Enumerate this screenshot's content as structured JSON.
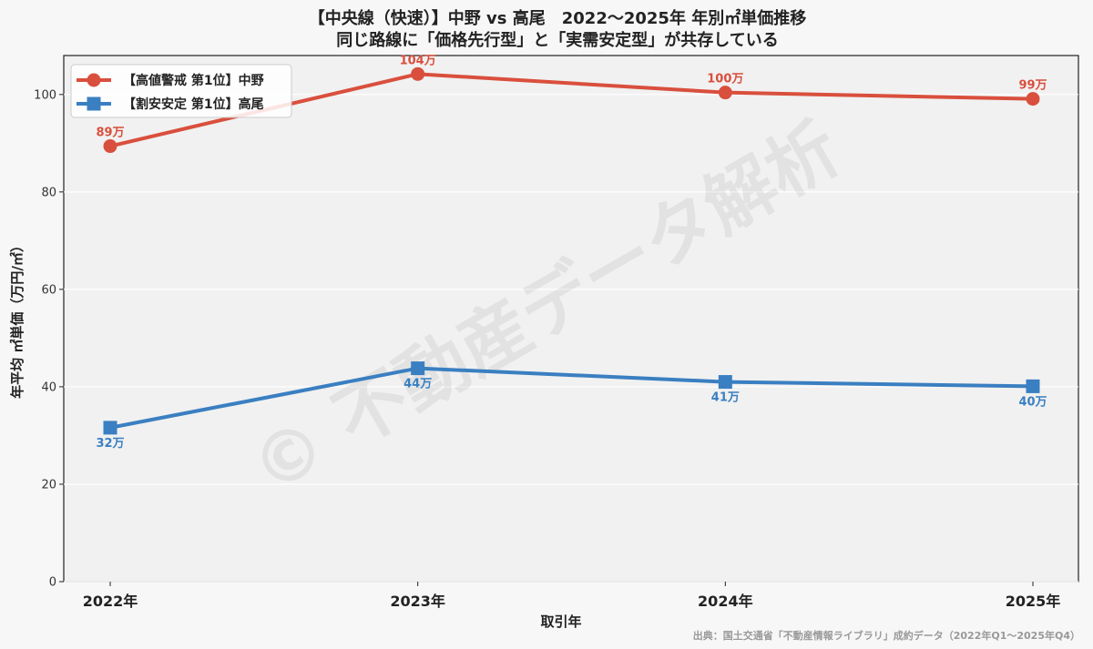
{
  "chart_data": {
    "type": "line",
    "title_line1": "【中央線（快速）】中野 vs 高尾　2022〜2025年 年別㎡単価推移",
    "title_line2": "同じ路線に「価格先行型」と「実需安定型」が共存している",
    "xlabel": "取引年",
    "ylabel": "年平均 ㎡単価（万円/㎡）",
    "categories": [
      "2022年",
      "2023年",
      "2024年",
      "2025年"
    ],
    "ylim": [
      0,
      108
    ],
    "yticks": [
      0,
      20,
      40,
      60,
      80,
      100
    ],
    "grid": true,
    "legend_position": "top-left",
    "series": [
      {
        "name": "【高値警戒 第1位】中野",
        "values": [
          89.4,
          104.2,
          100.4,
          99.1
        ],
        "labels": [
          "89万",
          "104万",
          "100万",
          "99万"
        ],
        "color": "#d94f3d",
        "marker": "circle",
        "label_position": "above"
      },
      {
        "name": "【割安安定 第1位】高尾",
        "values": [
          31.6,
          43.8,
          41.0,
          40.1
        ],
        "labels": [
          "32万",
          "44万",
          "41万",
          "40万"
        ],
        "color": "#3a7fc1",
        "marker": "square",
        "label_position": "below"
      }
    ],
    "source": "出典：国土交通省「不動産情報ライブラリ」成約データ（2022年Q1〜2025年Q4）",
    "watermark": "© 不動産データ解析"
  }
}
